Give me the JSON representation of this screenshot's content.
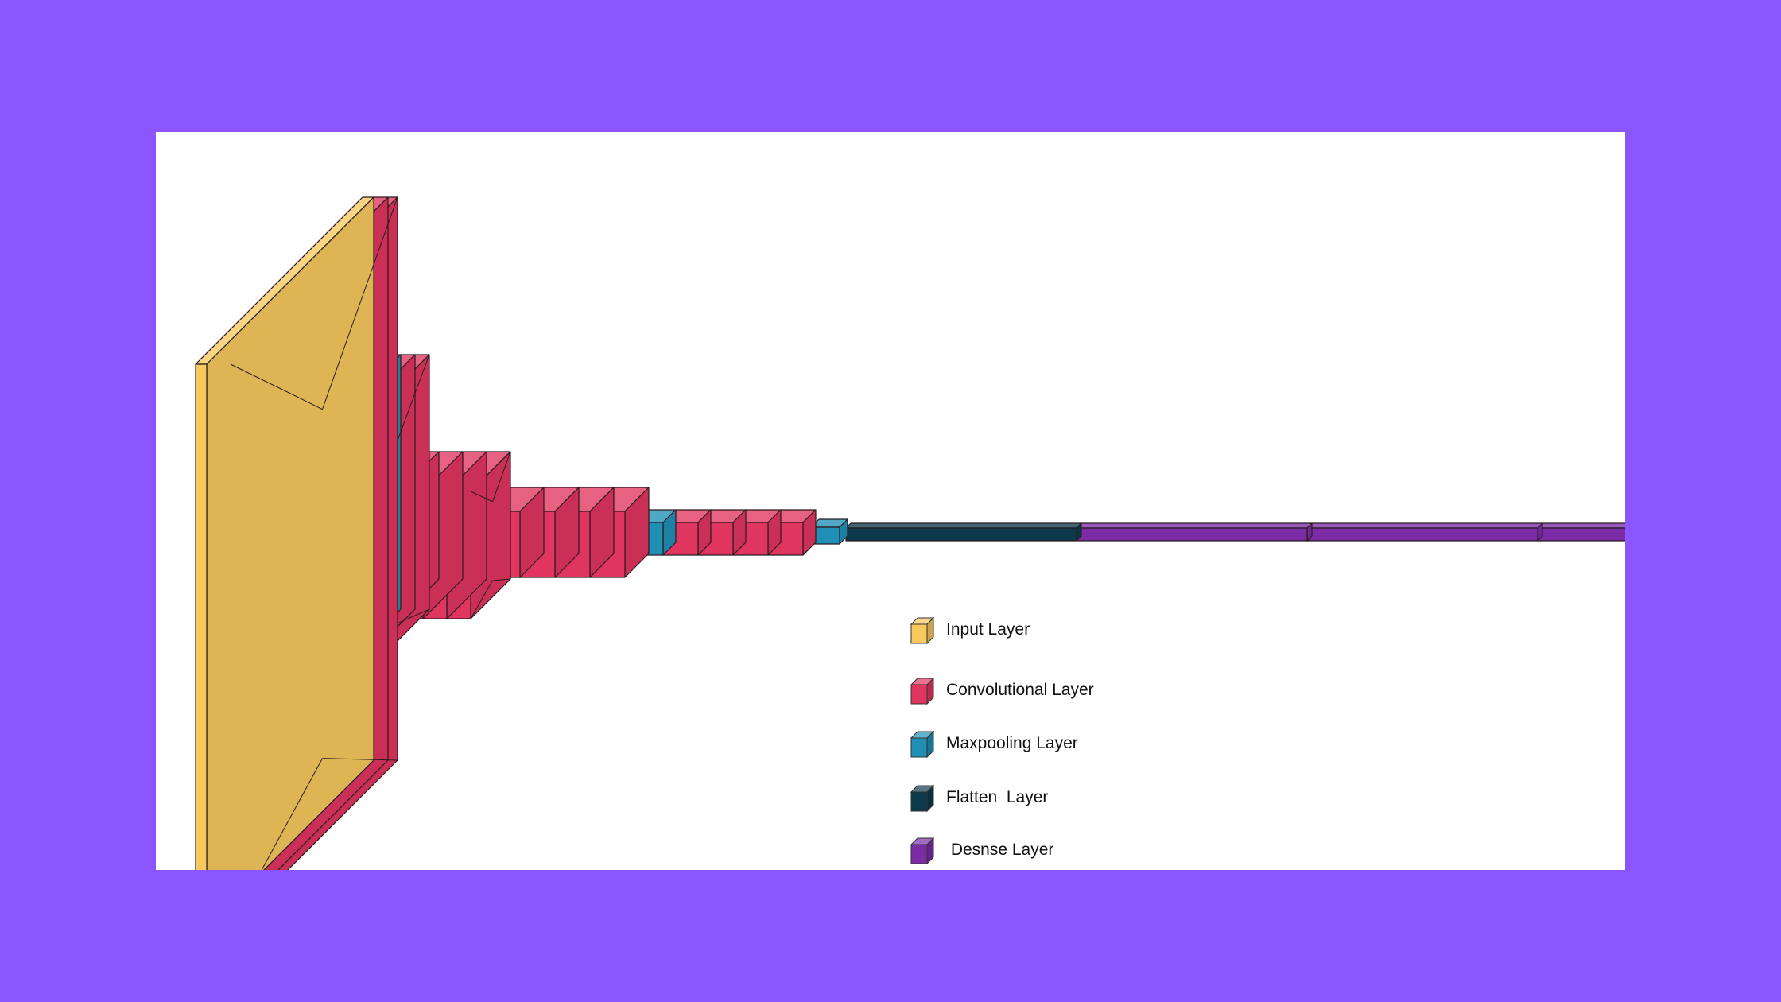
{
  "colors": {
    "background": "#8b55ff",
    "panel": "#ffffff",
    "input": "#f7c95e",
    "conv": "#e0355e",
    "pool": "#1f8fb5",
    "flatten": "#0d3a4a",
    "dense": "#7b2ba6"
  },
  "legend": [
    {
      "label": "Input Layer",
      "kind": "input",
      "icon": "cube-icon"
    },
    {
      "label": "Convolutional Layer",
      "kind": "conv",
      "icon": "cube-icon"
    },
    {
      "label": "Maxpooling Layer",
      "kind": "pool",
      "icon": "cube-icon"
    },
    {
      "label": "Flatten  Layer",
      "kind": "flatten",
      "icon": "cube-icon"
    },
    {
      "label": " Desnse Layer",
      "kind": "dense",
      "icon": "cube-icon"
    }
  ],
  "network": {
    "stages": [
      {
        "layers": [
          "input",
          "conv",
          "conv"
        ]
      },
      {
        "layers": [
          "pool",
          "conv",
          "conv"
        ]
      },
      {
        "layers": [
          "pool",
          "conv",
          "conv",
          "conv",
          "conv"
        ]
      },
      {
        "layers": [
          "pool",
          "conv",
          "conv",
          "conv",
          "conv"
        ]
      },
      {
        "layers": [
          "pool",
          "conv",
          "conv",
          "conv",
          "conv"
        ]
      },
      {
        "layers": [
          "pool"
        ]
      },
      {
        "layers": [
          "flatten",
          "dense",
          "dense",
          "dense"
        ]
      }
    ]
  }
}
